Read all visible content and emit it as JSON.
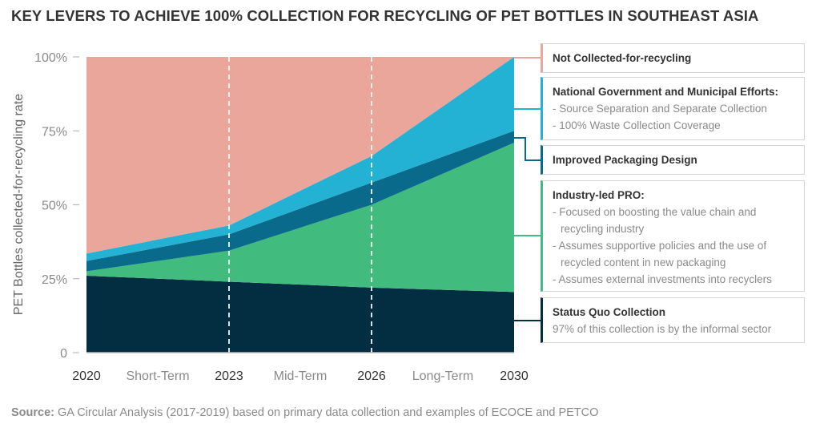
{
  "chart_data": {
    "type": "area",
    "stacked": true,
    "title": "KEY LEVERS TO ACHIEVE 100% COLLECTION FOR RECYCLING OF PET BOTTLES IN SOUTHEAST ASIA",
    "ylabel": "PET Bottles collected-for-recycling rate",
    "xlabel": "",
    "x": [
      "2020",
      "2023",
      "2026",
      "2030"
    ],
    "x_tick_labels": [
      "2020",
      "Short-Term",
      "2023",
      "Mid-Term",
      "2026",
      "Long-Term",
      "2030"
    ],
    "y_tick_labels": [
      "100%",
      "75%",
      "50%",
      "25%",
      "0"
    ],
    "ylim": [
      0,
      100
    ],
    "series": [
      {
        "name": "Status Quo Collection",
        "values": [
          26,
          24,
          22,
          20.5
        ],
        "color": "#032d40"
      },
      {
        "name": "Industry-led PRO",
        "values": [
          1.5,
          10.5,
          28,
          50.5
        ],
        "color": "#41bb7e"
      },
      {
        "name": "Improved Packaging Design",
        "values": [
          3.5,
          5.5,
          7.5,
          4
        ],
        "color": "#0a6a8c"
      },
      {
        "name": "National Government and Municipal Efforts",
        "values": [
          2.5,
          3,
          9,
          25
        ],
        "color": "#23b2d3"
      },
      {
        "name": "Not Collected-for-recycling",
        "values": [
          66.5,
          57,
          33.5,
          0
        ],
        "color": "#eba69c"
      }
    ],
    "dashed_verticals": [
      "2023",
      "2026"
    ],
    "grid": false
  },
  "legend": {
    "not_collected": {
      "title": "Not Collected-for-recycling",
      "color": "#eba69c"
    },
    "national": {
      "title": "National Government and Municipal Efforts:",
      "lines": [
        "- Source Separation and Separate Collection",
        "- 100% Waste Collection Coverage"
      ],
      "color": "#23b2d3"
    },
    "packaging": {
      "title": "Improved Packaging Design",
      "color": "#0a6a8c"
    },
    "industry": {
      "title": "Industry-led PRO:",
      "lines": [
        "- Focused on boosting the value chain and",
        "recycling industry",
        "- Assumes supportive policies and the use of",
        "recycled content in new packaging",
        "- Assumes external investments into recyclers"
      ],
      "color": "#41bb7e"
    },
    "status_quo": {
      "title": "Status Quo Collection",
      "lines": [
        "97% of this collection is by the informal sector"
      ],
      "color": "#032d40"
    }
  },
  "source": {
    "label": "Source:",
    "text": "GA Circular Analysis (2017-2019) based on primary data collection and examples of ECOCE and PETCO"
  }
}
